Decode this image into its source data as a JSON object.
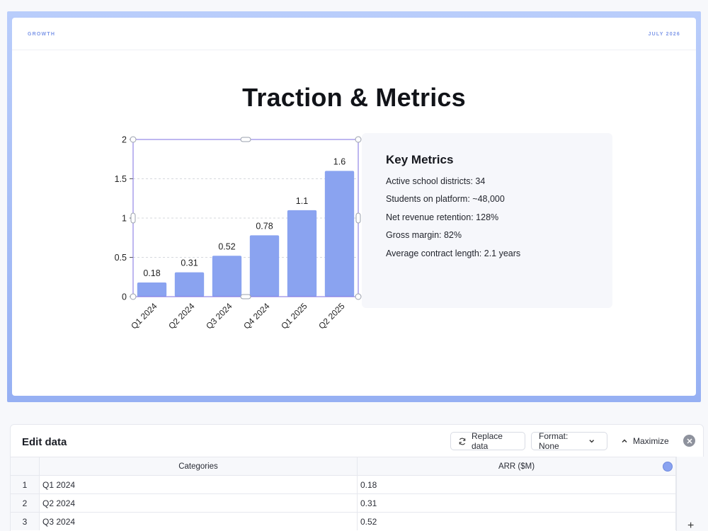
{
  "slide": {
    "header_left": "GROWTH",
    "header_right": "JULY 2026",
    "title": "Traction & Metrics"
  },
  "chart_data": {
    "type": "bar",
    "categories": [
      "Q1 2024",
      "Q2 2024",
      "Q3 2024",
      "Q4 2024",
      "Q1 2025",
      "Q2 2025"
    ],
    "values": [
      0.18,
      0.31,
      0.52,
      0.78,
      1.1,
      1.6
    ],
    "value_labels": [
      "0.18",
      "0.31",
      "0.52",
      "0.78",
      "1.1",
      "1.6"
    ],
    "y_ticks": [
      "0",
      "0.5",
      "1",
      "1.5",
      "2"
    ],
    "ylim": [
      0,
      2
    ],
    "grid": true,
    "bar_color": "#8aa3f0",
    "selection_color": "#7d6fe0"
  },
  "metrics": {
    "title": "Key Metrics",
    "items": [
      "Active school districts: 34",
      "Students on platform: ~48,000",
      "Net revenue retention: 128%",
      "Gross margin: 82%",
      "Average contract length: 2.1 years"
    ]
  },
  "editor": {
    "title": "Edit data",
    "replace_label": "Replace data",
    "format_label": "Format: None",
    "maximize_label": "Maximize",
    "columns": [
      "Categories",
      "ARR ($M)"
    ],
    "rows": [
      {
        "num": "1",
        "category": "Q1 2024",
        "value": "0.18"
      },
      {
        "num": "2",
        "category": "Q2 2024",
        "value": "0.31"
      },
      {
        "num": "3",
        "category": "Q3 2024",
        "value": "0.52"
      }
    ],
    "add_label": "+"
  }
}
